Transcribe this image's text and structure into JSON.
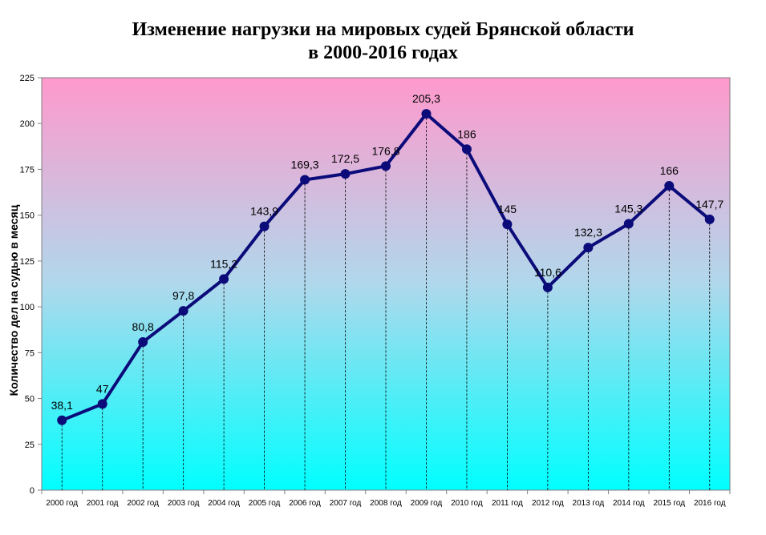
{
  "chart_data": {
    "type": "line",
    "title_line1": "Изменение нагрузки на мировых судей Брянской области",
    "title_line2": "в 2000-2016 годах",
    "ylabel": "Количество дел на судью в месяц",
    "xlabel": "",
    "ylim": [
      0,
      225
    ],
    "yticks": [
      "0",
      "25",
      "50",
      "75",
      "100",
      "125",
      "150",
      "175",
      "200",
      "225"
    ],
    "categories": [
      "2000 год",
      "2001 год",
      "2002 год",
      "2003 год",
      "2004 год",
      "2005 год",
      "2006 год",
      "2007 год",
      "2008 год",
      "2009 год",
      "2010 год",
      "2011 год",
      "2012 год",
      "2013 год",
      "2014 год",
      "2015 год",
      "2016 год"
    ],
    "values": [
      38.1,
      47,
      80.8,
      97.8,
      115.2,
      143.9,
      169.3,
      172.5,
      176.8,
      205.3,
      186,
      145,
      110.6,
      132.3,
      145.3,
      166,
      147.7
    ],
    "value_labels": [
      "38,1",
      "47",
      "80,8",
      "97,8",
      "115,2",
      "143,9",
      "169,3",
      "172,5",
      "176,8",
      "205,3",
      "186",
      "145",
      "110,6",
      "132,3",
      "145,3",
      "166",
      "147,7"
    ],
    "legend": "none",
    "grid": false,
    "drop_lines": true,
    "colors": {
      "line": "#0b0b7a",
      "marker": "#0b0b7a",
      "bg_top": "#ff99cc",
      "bg_bottom": "#00ffff"
    }
  }
}
